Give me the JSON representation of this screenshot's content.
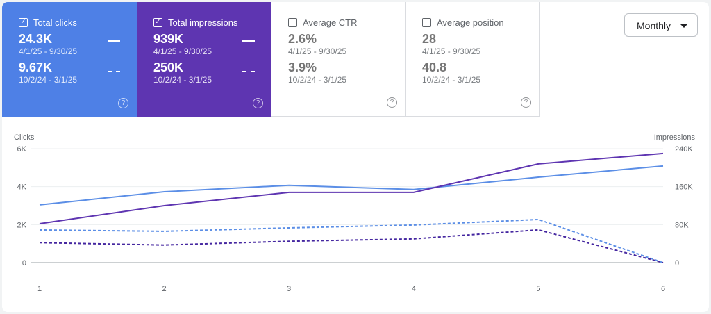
{
  "cards": [
    {
      "label": "Total clicks",
      "checked": true,
      "current": "24.3K",
      "current_range": "4/1/25 - 9/30/25",
      "previous": "9.67K",
      "previous_range": "10/2/24 - 3/1/25",
      "color": "#4e80e6"
    },
    {
      "label": "Total impressions",
      "checked": true,
      "current": "939K",
      "current_range": "4/1/25 - 9/30/25",
      "previous": "250K",
      "previous_range": "10/2/24 - 3/1/25",
      "color": "#5e35b1"
    },
    {
      "label": "Average CTR",
      "checked": false,
      "current": "2.6%",
      "current_range": "4/1/25 - 9/30/25",
      "previous": "3.9%",
      "previous_range": "10/2/24 - 3/1/25"
    },
    {
      "label": "Average position",
      "checked": false,
      "current": "28",
      "current_range": "4/1/25 - 9/30/25",
      "previous": "40.8",
      "previous_range": "10/2/24 - 3/1/25"
    }
  ],
  "period_select": {
    "value": "Monthly"
  },
  "chart_data": {
    "type": "line",
    "x": [
      1,
      2,
      3,
      4,
      5,
      6
    ],
    "y_left": {
      "label": "Clicks",
      "ticks": [
        "0",
        "2K",
        "4K",
        "6K"
      ],
      "range": [
        0,
        6000
      ]
    },
    "y_right": {
      "label": "Impressions",
      "ticks": [
        "0",
        "80K",
        "160K",
        "240K"
      ],
      "range": [
        0,
        240000
      ]
    },
    "grid": true,
    "series": [
      {
        "axis": "left",
        "style": "solid",
        "color": "#5b8ee6",
        "values": [
          3040,
          3730,
          4070,
          3850,
          4500,
          5090
        ]
      },
      {
        "axis": "right",
        "style": "solid",
        "color": "#5e35b1",
        "values": [
          82000,
          120000,
          148000,
          148000,
          208000,
          230000
        ]
      },
      {
        "axis": "left",
        "style": "dashed",
        "color": "#5b8ee6",
        "values": [
          1720,
          1650,
          1830,
          1980,
          2270,
          0
        ]
      },
      {
        "axis": "right",
        "style": "dashed",
        "color": "#4527a0",
        "values": [
          42000,
          37000,
          45000,
          50000,
          69000,
          0
        ]
      }
    ]
  }
}
